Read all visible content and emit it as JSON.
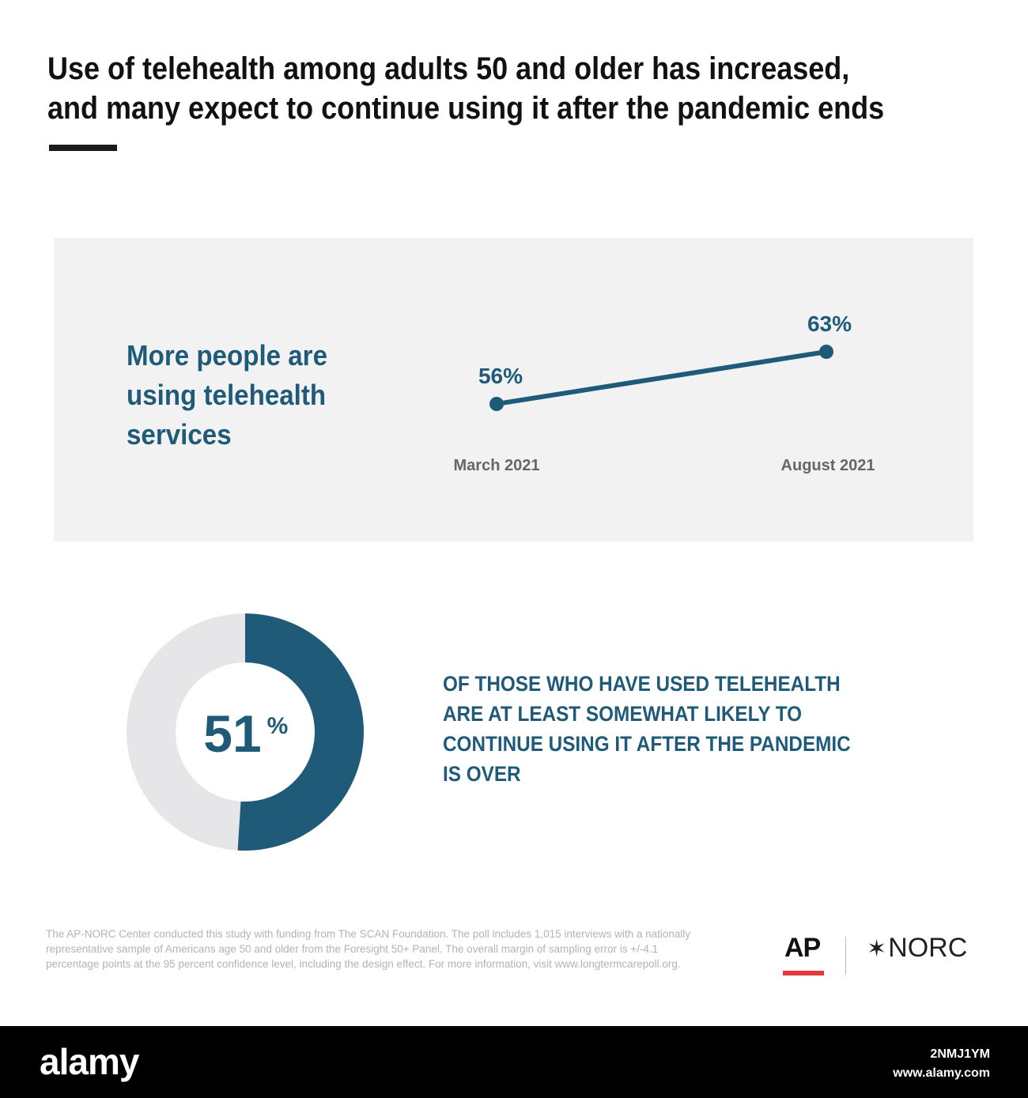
{
  "title": "Use of telehealth among adults 50 and older has increased, and many expect to continue using it after the pandemic ends",
  "panel": {
    "heading": "More people are using telehealth services"
  },
  "chart_data": [
    {
      "type": "line",
      "categories": [
        "March 2021",
        "August 2021"
      ],
      "values": [
        56,
        63
      ],
      "data_labels": [
        "56%",
        "63%"
      ],
      "title": "",
      "grid": false,
      "line_color": "#1f5b79"
    },
    {
      "type": "pie",
      "style": "donut",
      "value": 51,
      "number_label": "51",
      "unit_label": "%",
      "caption": "OF THOSE WHO HAVE USED TELEHEALTH ARE AT LEAST SOMEWHAT LIKELY TO CONTINUE USING IT AFTER THE PANDEMIC IS OVER",
      "fill_color": "#1f5b79",
      "track_color": "#e6e6e8"
    }
  ],
  "footnote": "The AP-NORC Center conducted this study with funding from The SCAN Foundation. The poll includes 1,015 interviews with a nationally representative sample of Americans age 50 and older from the Foresight 50+ Panel. The overall margin of sampling error is +/-4.1 percentage points at the 95 percent confidence level, including the design effect. For more information, visit www.longtermcarepoll.org.",
  "logos": {
    "ap": "AP",
    "norc": "NORC",
    "norc_icon": "asterisk-icon",
    "ap_bar_color": "#e23a3a"
  },
  "stock": {
    "brand": "alamy",
    "image_id": "2NMJ1YM",
    "site": "www.alamy.com"
  }
}
